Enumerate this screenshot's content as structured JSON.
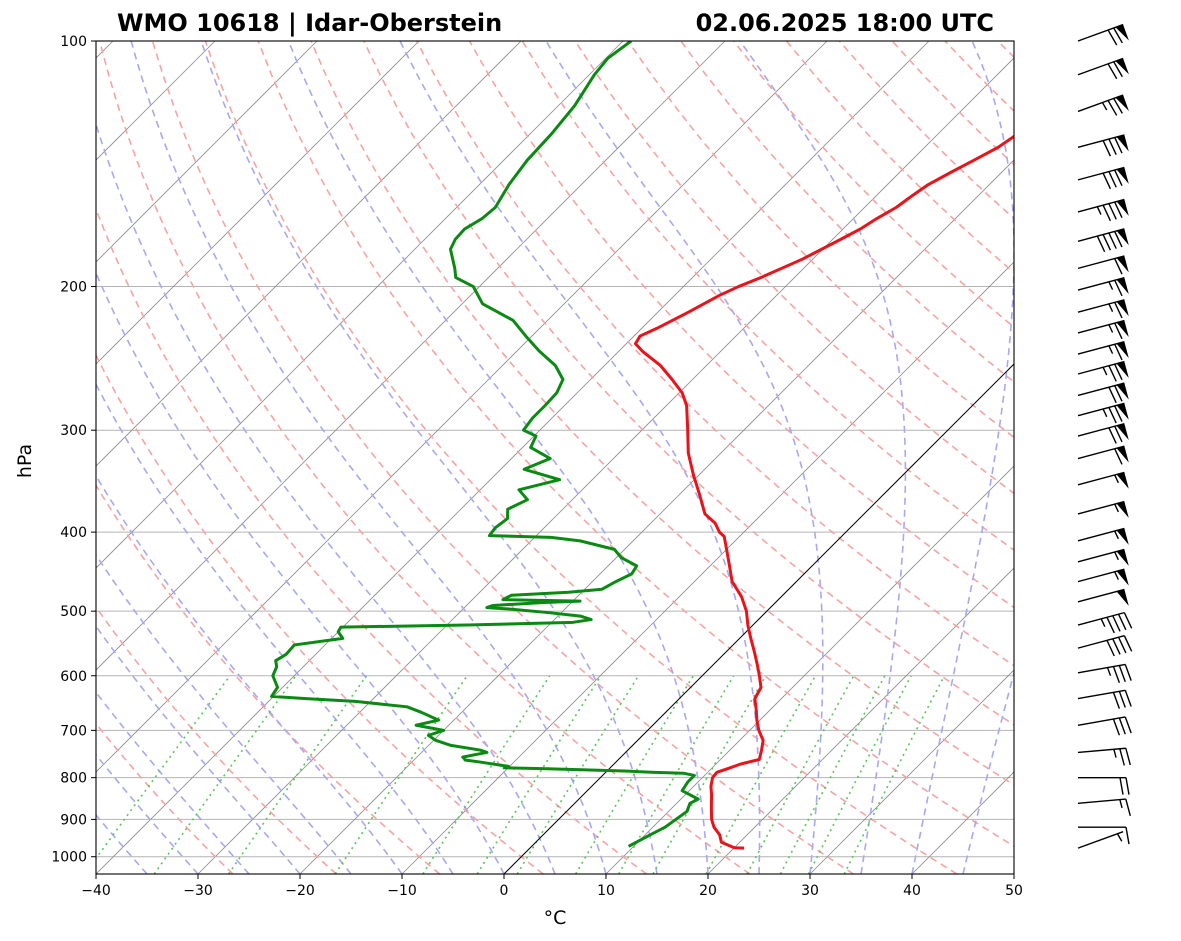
{
  "header": {
    "station": "WMO 10618 | Idar-Oberstein",
    "datetime": "02.06.2025 18:00 UTC"
  },
  "chart_data": {
    "type": "skew-t log-p",
    "title_left": "WMO 10618 | Idar-Oberstein",
    "title_right": "02.06.2025 18:00 UTC",
    "xlabel": "°C",
    "ylabel": "hPa",
    "xlim": [
      -40,
      50
    ],
    "ylim_hpa": [
      1050,
      100
    ],
    "x_ticks": [
      -40,
      -30,
      -20,
      -10,
      0,
      10,
      20,
      30,
      40,
      50
    ],
    "x_tick_labels": [
      "−40",
      "−30",
      "−20",
      "−10",
      "0",
      "10",
      "20",
      "30",
      "40",
      "50"
    ],
    "y_ticks": [
      1000,
      900,
      800,
      700,
      600,
      500,
      400,
      300,
      200,
      100
    ],
    "y_tick_labels": [
      "1000",
      "900",
      "800",
      "700",
      "600",
      "500",
      "400",
      "300",
      "200",
      "100"
    ],
    "grid": true,
    "colors": {
      "temperature": "#e8141b",
      "dewpoint": "#0a8a12",
      "dry_adiabats": "#f6a3a3",
      "moist_adiabats": "#a8a8f0",
      "mixing_ratio": "#5cc45c",
      "isotherms": "#8a8a8a",
      "isobars": "#b4b4b4",
      "zero_isotherm": "#000000"
    },
    "series": [
      {
        "key": "temperature",
        "profile": [
          [
            976,
            21.0
          ],
          [
            975,
            20.0
          ],
          [
            960,
            18.2
          ],
          [
            940,
            17.3
          ],
          [
            920,
            16.0
          ],
          [
            900,
            15.0
          ],
          [
            880,
            14.2
          ],
          [
            860,
            13.4
          ],
          [
            840,
            12.6
          ],
          [
            820,
            11.7
          ],
          [
            800,
            11.0
          ],
          [
            788,
            10.9
          ],
          [
            780,
            11.6
          ],
          [
            770,
            12.4
          ],
          [
            760,
            13.8
          ],
          [
            740,
            13.1
          ],
          [
            720,
            12.3
          ],
          [
            700,
            10.9
          ],
          [
            680,
            9.7
          ],
          [
            660,
            8.6
          ],
          [
            640,
            7.4
          ],
          [
            620,
            6.9
          ],
          [
            600,
            5.6
          ],
          [
            580,
            4.2
          ],
          [
            560,
            2.7
          ],
          [
            540,
            1.1
          ],
          [
            520,
            -0.5
          ],
          [
            500,
            -2.0
          ],
          [
            480,
            -3.9
          ],
          [
            460,
            -6.3
          ],
          [
            440,
            -8.1
          ],
          [
            420,
            -10.0
          ],
          [
            405,
            -11.5
          ],
          [
            400,
            -12.4
          ],
          [
            390,
            -13.7
          ],
          [
            380,
            -15.6
          ],
          [
            360,
            -18.0
          ],
          [
            340,
            -20.6
          ],
          [
            320,
            -23.2
          ],
          [
            300,
            -25.5
          ],
          [
            280,
            -28.0
          ],
          [
            270,
            -29.7
          ],
          [
            260,
            -32.0
          ],
          [
            250,
            -34.5
          ],
          [
            240,
            -37.7
          ],
          [
            235,
            -39.1
          ],
          [
            230,
            -39.4
          ],
          [
            225,
            -38.5
          ],
          [
            215,
            -37.0
          ],
          [
            205,
            -35.6
          ],
          [
            200,
            -34.6
          ],
          [
            195,
            -33.3
          ],
          [
            185,
            -31.0
          ],
          [
            175,
            -29.2
          ],
          [
            170,
            -28.3
          ],
          [
            165,
            -27.7
          ],
          [
            160,
            -26.9
          ],
          [
            155,
            -26.5
          ],
          [
            150,
            -26.0
          ],
          [
            145,
            -25.0
          ],
          [
            140,
            -23.9
          ],
          [
            135,
            -22.8
          ],
          [
            130,
            -22.2
          ],
          [
            125,
            -21.5
          ],
          [
            120,
            -20.6
          ],
          [
            116,
            -19.8
          ],
          [
            112,
            -18.6
          ],
          [
            108,
            -17.2
          ],
          [
            104,
            -16.8
          ],
          [
            100,
            -16.0
          ]
        ]
      },
      {
        "key": "dewpoint",
        "profile": [
          [
            971,
            9.5
          ],
          [
            940,
            10.5
          ],
          [
            920,
            11.2
          ],
          [
            880,
            11.8
          ],
          [
            860,
            11.3
          ],
          [
            850,
            11.7
          ],
          [
            830,
            9.3
          ],
          [
            810,
            9.0
          ],
          [
            795,
            9.0
          ],
          [
            790,
            7.7
          ],
          [
            788,
            4.5
          ],
          [
            785,
            1.7
          ],
          [
            780,
            -6.1
          ],
          [
            778,
            -10.4
          ],
          [
            775,
            -10.1
          ],
          [
            765,
            -13.5
          ],
          [
            761,
            -15.0
          ],
          [
            758,
            -15.2
          ],
          [
            755,
            -15.5
          ],
          [
            750,
            -14.6
          ],
          [
            745,
            -13.6
          ],
          [
            740,
            -14.5
          ],
          [
            730,
            -17.9
          ],
          [
            720,
            -19.8
          ],
          [
            710,
            -21.0
          ],
          [
            700,
            -20.0
          ],
          [
            690,
            -23.2
          ],
          [
            680,
            -21.5
          ],
          [
            665,
            -24.0
          ],
          [
            655,
            -25.9
          ],
          [
            645,
            -31.5
          ],
          [
            640,
            -36.6
          ],
          [
            636,
            -40.2
          ],
          [
            620,
            -40.5
          ],
          [
            600,
            -42.1
          ],
          [
            585,
            -42.6
          ],
          [
            575,
            -43.3
          ],
          [
            565,
            -42.9
          ],
          [
            550,
            -43.0
          ],
          [
            540,
            -38.9
          ],
          [
            530,
            -40.0
          ],
          [
            523,
            -40.2
          ],
          [
            520,
            -28.0
          ],
          [
            516,
            -17.9
          ],
          [
            512,
            -16.4
          ],
          [
            507,
            -17.8
          ],
          [
            502,
            -21.3
          ],
          [
            497,
            -25.5
          ],
          [
            495,
            -27.8
          ],
          [
            492,
            -27.4
          ],
          [
            488,
            -22.7
          ],
          [
            486,
            -19.3
          ],
          [
            484,
            -27.0
          ],
          [
            478,
            -26.6
          ],
          [
            474,
            -21.3
          ],
          [
            470,
            -18.3
          ],
          [
            460,
            -17.7
          ],
          [
            450,
            -16.9
          ],
          [
            440,
            -17.2
          ],
          [
            430,
            -19.5
          ],
          [
            420,
            -21.0
          ],
          [
            410,
            -25.2
          ],
          [
            406,
            -28.4
          ],
          [
            404,
            -34.6
          ],
          [
            400,
            -34.7
          ],
          [
            395,
            -34.8
          ],
          [
            385,
            -34.5
          ],
          [
            375,
            -35.4
          ],
          [
            365,
            -34.4
          ],
          [
            355,
            -36.2
          ],
          [
            345,
            -33.2
          ],
          [
            335,
            -37.7
          ],
          [
            325,
            -36.2
          ],
          [
            315,
            -39.2
          ],
          [
            305,
            -39.8
          ],
          [
            300,
            -41.6
          ],
          [
            290,
            -41.9
          ],
          [
            280,
            -41.9
          ],
          [
            270,
            -42.0
          ],
          [
            260,
            -42.7
          ],
          [
            250,
            -44.8
          ],
          [
            240,
            -47.8
          ],
          [
            230,
            -50.6
          ],
          [
            220,
            -53.4
          ],
          [
            210,
            -58.0
          ],
          [
            200,
            -60.6
          ],
          [
            195,
            -63.2
          ],
          [
            190,
            -64.2
          ],
          [
            180,
            -66.5
          ],
          [
            175,
            -67.0
          ],
          [
            170,
            -67.1
          ],
          [
            165,
            -66.4
          ],
          [
            160,
            -66.2
          ],
          [
            150,
            -67.1
          ],
          [
            140,
            -67.7
          ],
          [
            130,
            -67.9
          ],
          [
            120,
            -68.4
          ],
          [
            110,
            -69.5
          ],
          [
            105,
            -69.8
          ],
          [
            100,
            -69.2
          ]
        ]
      }
    ],
    "wind_barbs": [
      {
        "p": 100,
        "dir": 250,
        "spd": 70
      },
      {
        "p": 110,
        "dir": 250,
        "spd": 70
      },
      {
        "p": 122,
        "dir": 250,
        "spd": 75
      },
      {
        "p": 135,
        "dir": 255,
        "spd": 80
      },
      {
        "p": 148,
        "dir": 255,
        "spd": 80
      },
      {
        "p": 162,
        "dir": 255,
        "spd": 85
      },
      {
        "p": 176,
        "dir": 255,
        "spd": 90
      },
      {
        "p": 190,
        "dir": 255,
        "spd": 60
      },
      {
        "p": 202,
        "dir": 255,
        "spd": 65
      },
      {
        "p": 215,
        "dir": 255,
        "spd": 65
      },
      {
        "p": 228,
        "dir": 255,
        "spd": 65
      },
      {
        "p": 242,
        "dir": 255,
        "spd": 65
      },
      {
        "p": 256,
        "dir": 255,
        "spd": 75
      },
      {
        "p": 272,
        "dir": 255,
        "spd": 70
      },
      {
        "p": 288,
        "dir": 255,
        "spd": 75
      },
      {
        "p": 305,
        "dir": 255,
        "spd": 70
      },
      {
        "p": 325,
        "dir": 255,
        "spd": 60
      },
      {
        "p": 350,
        "dir": 255,
        "spd": 55
      },
      {
        "p": 380,
        "dir": 255,
        "spd": 55
      },
      {
        "p": 410,
        "dir": 255,
        "spd": 55
      },
      {
        "p": 435,
        "dir": 255,
        "spd": 55
      },
      {
        "p": 460,
        "dir": 255,
        "spd": 55
      },
      {
        "p": 487,
        "dir": 255,
        "spd": 50
      },
      {
        "p": 520,
        "dir": 255,
        "spd": 45
      },
      {
        "p": 555,
        "dir": 255,
        "spd": 40
      },
      {
        "p": 595,
        "dir": 260,
        "spd": 35
      },
      {
        "p": 640,
        "dir": 260,
        "spd": 30
      },
      {
        "p": 690,
        "dir": 260,
        "spd": 30
      },
      {
        "p": 745,
        "dir": 265,
        "spd": 25
      },
      {
        "p": 800,
        "dir": 270,
        "spd": 20
      },
      {
        "p": 860,
        "dir": 265,
        "spd": 15
      },
      {
        "p": 920,
        "dir": 270,
        "spd": 10
      },
      {
        "p": 976,
        "dir": 250,
        "spd": 5
      }
    ]
  }
}
